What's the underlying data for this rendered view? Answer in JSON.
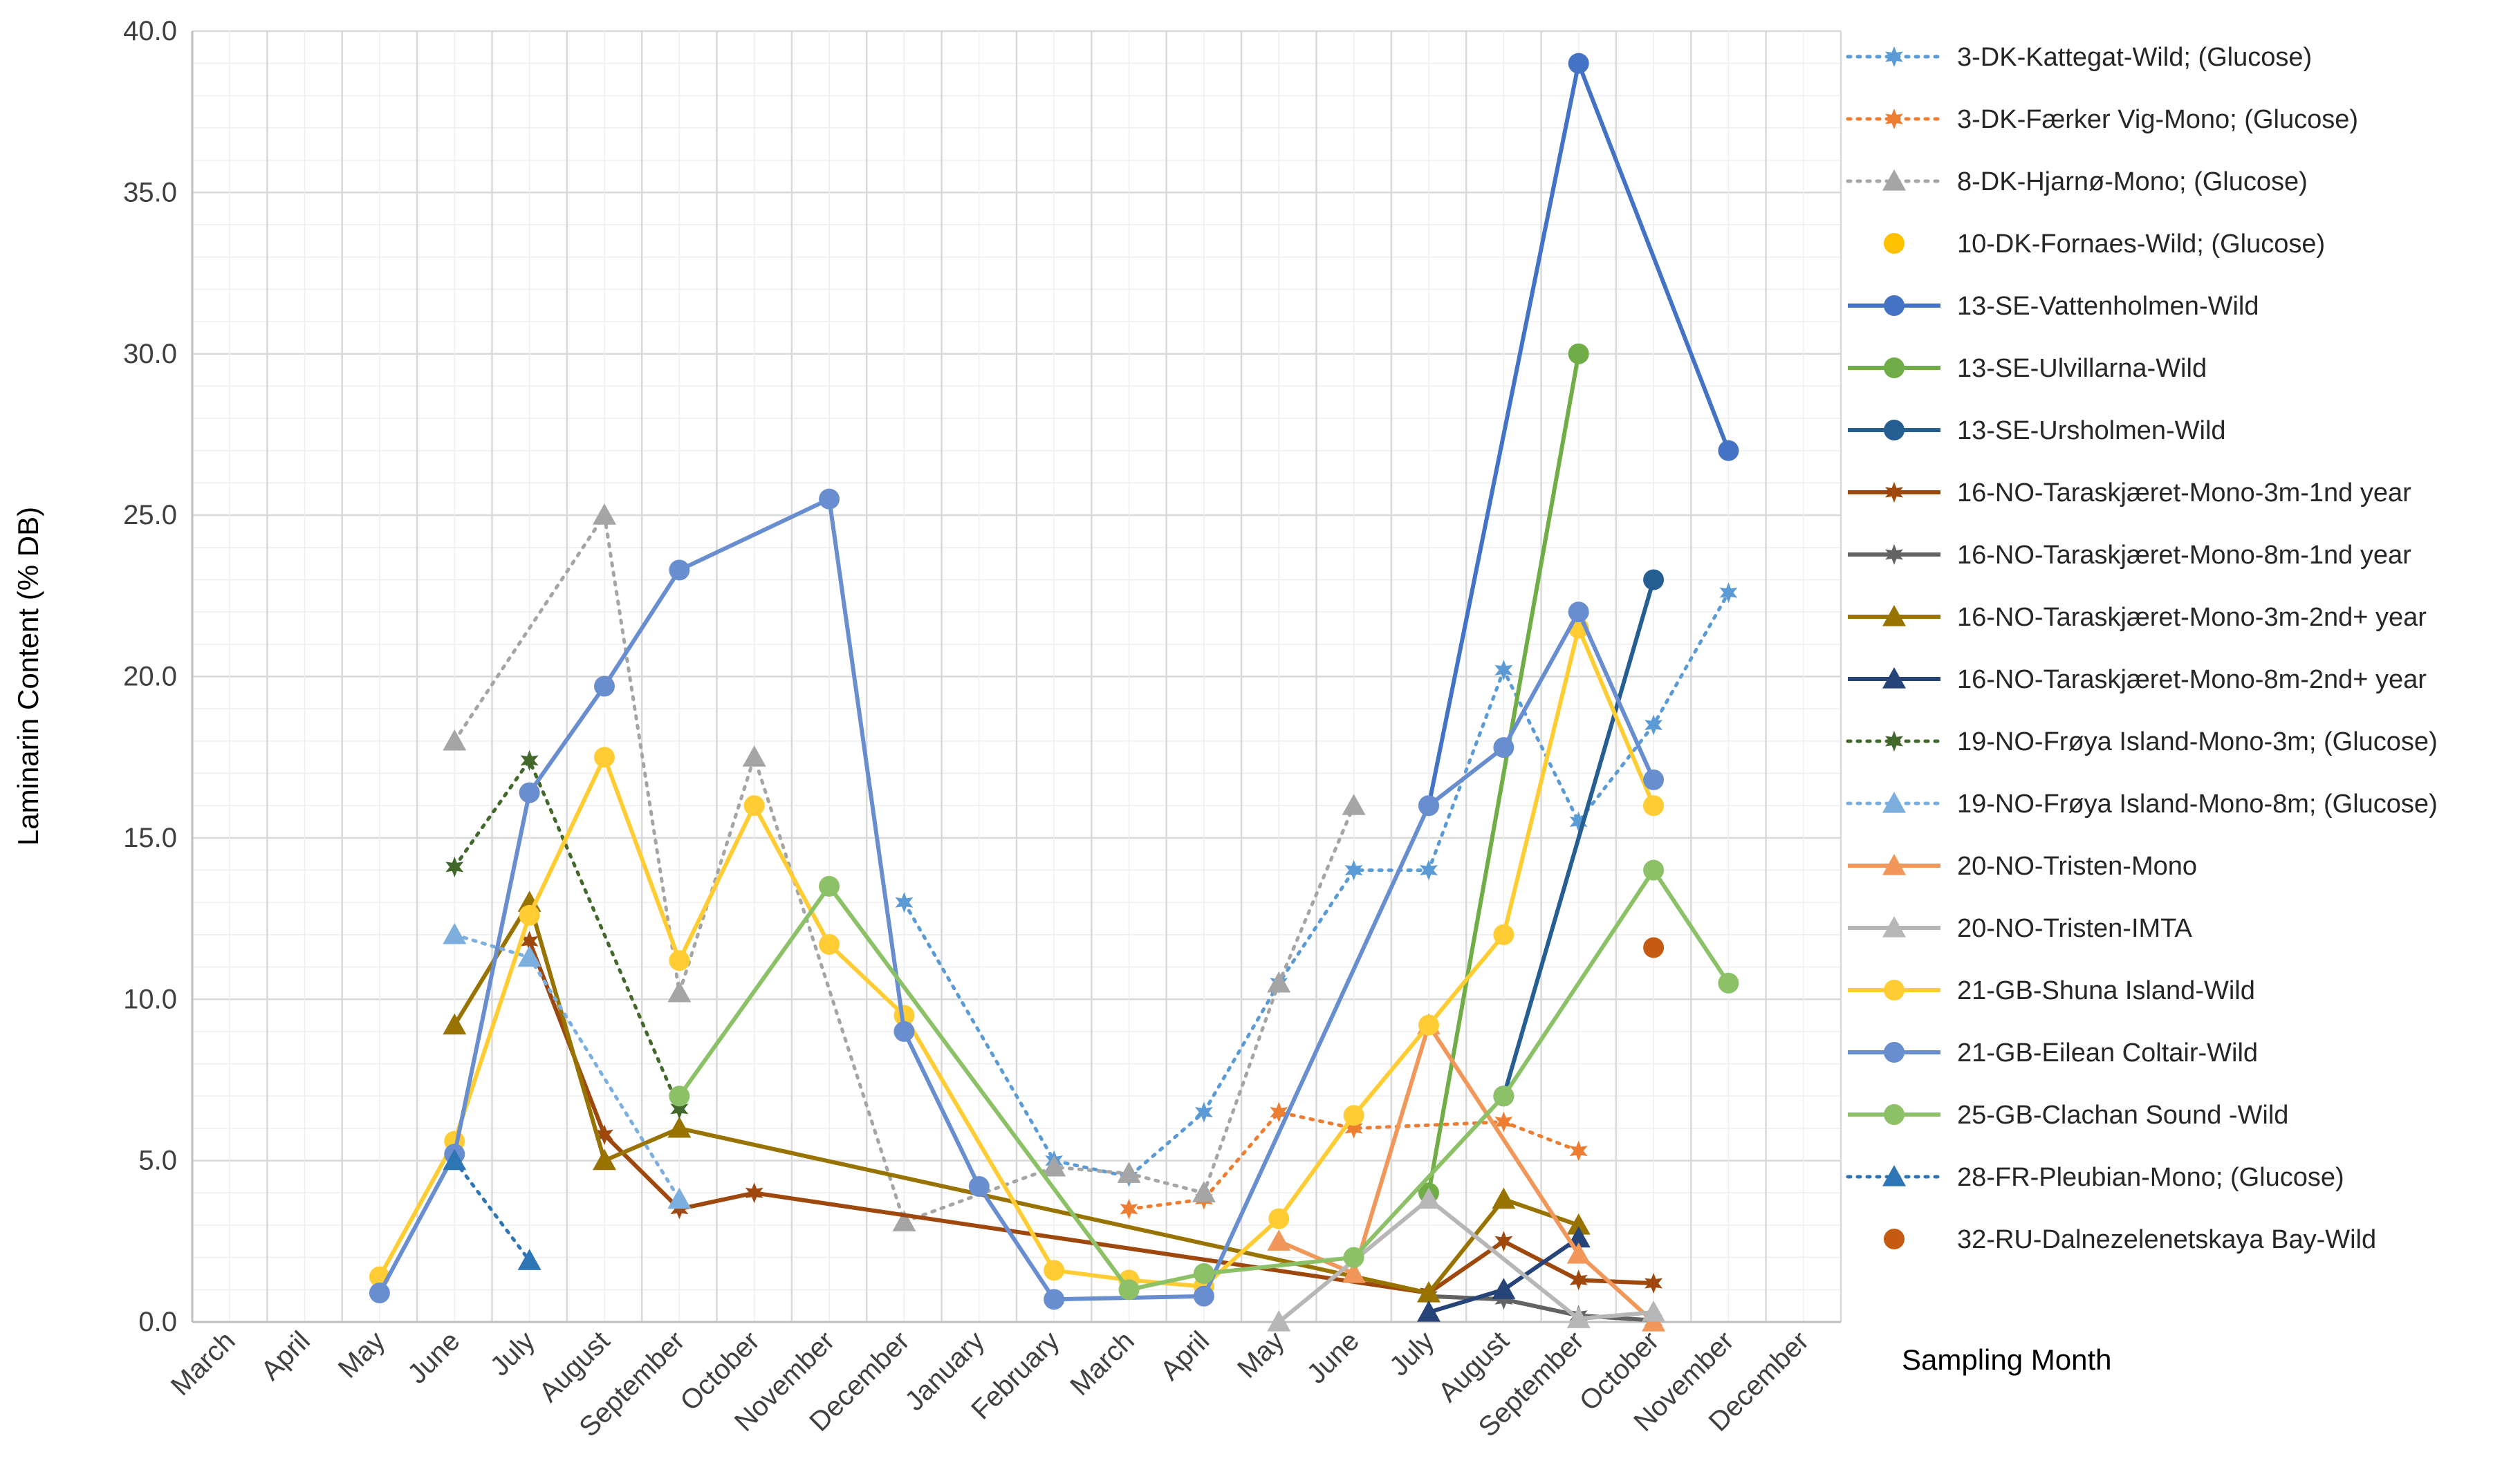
{
  "chart_data": {
    "type": "line",
    "ylabel": "Laminarin Content (% DB)",
    "xlabel": "Sampling Month",
    "ylim": [
      0,
      40
    ],
    "yticks": [
      0,
      5,
      10,
      15,
      20,
      25,
      30,
      35,
      40
    ],
    "ytick_labels": [
      "0.0",
      "5.0",
      "10.0",
      "15.0",
      "20.0",
      "25.0",
      "30.0",
      "35.0",
      "40.0"
    ],
    "grid": true,
    "legend_position": "right",
    "categories": [
      "March",
      "April",
      "May",
      "June",
      "July",
      "August",
      "September",
      "October",
      "November",
      "December",
      "January",
      "February",
      "March",
      "April",
      "May",
      "June",
      "July",
      "August",
      "September",
      "October",
      "November",
      "December"
    ],
    "series": [
      {
        "name": "3-DK-Kattegat-Wild; (Glucose)",
        "color": "#5B9BD5",
        "dash": "dot",
        "marker": "star",
        "points": [
          [
            9,
            13.0
          ],
          [
            11,
            5.0
          ],
          [
            12,
            4.5
          ],
          [
            13,
            6.5
          ],
          [
            14,
            10.5
          ],
          [
            15,
            14.0
          ],
          [
            16,
            14.0
          ],
          [
            17,
            20.2
          ],
          [
            18,
            15.5
          ],
          [
            19,
            18.5
          ],
          [
            20,
            22.6
          ]
        ]
      },
      {
        "name": "3-DK-Færker Vig-Mono; (Glucose)",
        "color": "#ED7D31",
        "dash": "dot",
        "marker": "star",
        "points": [
          [
            12,
            3.5
          ],
          [
            13,
            3.8
          ],
          [
            14,
            6.5
          ],
          [
            15,
            6.0
          ],
          [
            17,
            6.2
          ],
          [
            18,
            5.3
          ]
        ]
      },
      {
        "name": "8-DK-Hjarnø-Mono; (Glucose)",
        "color": "#A5A5A5",
        "dash": "dot",
        "marker": "triangle",
        "points": [
          [
            3,
            18.0
          ],
          [
            5,
            25.0
          ],
          [
            6,
            10.2
          ],
          [
            7,
            17.5
          ],
          [
            9,
            3.1
          ],
          [
            11,
            4.8
          ],
          [
            12,
            4.6
          ],
          [
            13,
            4.0
          ],
          [
            14,
            10.5
          ],
          [
            15,
            16.0
          ]
        ]
      },
      {
        "name": "10-DK-Fornaes-Wild; (Glucose)",
        "color": "#FFC000",
        "dash": "none",
        "marker": "circle",
        "points": [
          [
            19,
            16.0
          ]
        ]
      },
      {
        "name": "13-SE-Vattenholmen-Wild",
        "color": "#4472C4",
        "dash": "solid",
        "marker": "circle",
        "points": [
          [
            16,
            16.0
          ],
          [
            18,
            39.0
          ],
          [
            20,
            27.0
          ]
        ]
      },
      {
        "name": "13-SE-Ulvillarna-Wild",
        "color": "#70AD47",
        "dash": "solid",
        "marker": "circle",
        "points": [
          [
            16,
            4.0
          ],
          [
            18,
            30.0
          ]
        ]
      },
      {
        "name": "13-SE-Ursholmen-Wild",
        "color": "#255E91",
        "dash": "solid",
        "marker": "circle",
        "points": [
          [
            17,
            7.0
          ],
          [
            19,
            23.0
          ]
        ]
      },
      {
        "name": "16-NO-Taraskjæret-Mono-3m-1nd year",
        "color": "#9E480E",
        "dash": "solid",
        "marker": "star",
        "points": [
          [
            4,
            11.8
          ],
          [
            5,
            5.8
          ],
          [
            6,
            3.5
          ],
          [
            7,
            4.0
          ],
          [
            16,
            0.9
          ],
          [
            17,
            2.5
          ],
          [
            18,
            1.3
          ],
          [
            19,
            1.2
          ]
        ]
      },
      {
        "name": "16-NO-Taraskjæret-Mono-8m-1nd year",
        "color": "#636363",
        "dash": "solid",
        "marker": "star",
        "points": [
          [
            16,
            0.8
          ],
          [
            17,
            0.7
          ],
          [
            18,
            0.2
          ],
          [
            19,
            0.05
          ]
        ]
      },
      {
        "name": "16-NO-Taraskjæret-Mono-3m-2nd+ year",
        "color": "#997300",
        "dash": "solid",
        "marker": "triangle",
        "points": [
          [
            3,
            9.2
          ],
          [
            4,
            13.0
          ],
          [
            5,
            5.0
          ],
          [
            6,
            6.0
          ],
          [
            16,
            0.9
          ],
          [
            17,
            3.8
          ],
          [
            18,
            3.0
          ]
        ]
      },
      {
        "name": "16-NO-Taraskjæret-Mono-8m-2nd+ year",
        "color": "#264478",
        "dash": "solid",
        "marker": "triangle",
        "points": [
          [
            16,
            0.3
          ],
          [
            17,
            1.0
          ],
          [
            18,
            2.6
          ]
        ]
      },
      {
        "name": "19-NO-Frøya Island-Mono-3m; (Glucose)",
        "color": "#43682B",
        "dash": "dot",
        "marker": "star",
        "points": [
          [
            3,
            14.1
          ],
          [
            4,
            17.4
          ],
          [
            6,
            6.6
          ]
        ]
      },
      {
        "name": "19-NO-Frøya Island-Mono-8m; (Glucose)",
        "color": "#7CAFDD",
        "dash": "dot",
        "marker": "triangle",
        "points": [
          [
            3,
            12.0
          ],
          [
            4,
            11.3
          ],
          [
            6,
            3.8
          ]
        ]
      },
      {
        "name": "20-NO-Tristen-Mono",
        "color": "#F1975A",
        "dash": "solid",
        "marker": "triangle",
        "points": [
          [
            14,
            2.5
          ],
          [
            15,
            1.5
          ],
          [
            16,
            9.2
          ],
          [
            18,
            2.1
          ],
          [
            19,
            0.0
          ]
        ]
      },
      {
        "name": "20-NO-Tristen-IMTA",
        "color": "#B7B7B7",
        "dash": "solid",
        "marker": "triangle",
        "points": [
          [
            14,
            0.0
          ],
          [
            16,
            3.8
          ],
          [
            18,
            0.1
          ],
          [
            19,
            0.3
          ]
        ]
      },
      {
        "name": "21-GB-Shuna Island-Wild",
        "color": "#FFCD33",
        "dash": "solid",
        "marker": "circle",
        "points": [
          [
            2,
            1.4
          ],
          [
            3,
            5.6
          ],
          [
            4,
            12.6
          ],
          [
            5,
            17.5
          ],
          [
            6,
            11.2
          ],
          [
            7,
            16.0
          ],
          [
            8,
            11.7
          ],
          [
            9,
            9.5
          ],
          [
            11,
            1.6
          ],
          [
            12,
            1.3
          ],
          [
            13,
            1.1
          ],
          [
            14,
            3.2
          ],
          [
            15,
            6.4
          ],
          [
            16,
            9.2
          ],
          [
            17,
            12.0
          ],
          [
            18,
            21.5
          ],
          [
            19,
            16.0
          ]
        ]
      },
      {
        "name": "21-GB-Eilean Coltair-Wild",
        "color": "#698ED0",
        "dash": "solid",
        "marker": "circle",
        "points": [
          [
            2,
            0.9
          ],
          [
            3,
            5.2
          ],
          [
            4,
            16.4
          ],
          [
            5,
            19.7
          ],
          [
            6,
            23.3
          ],
          [
            8,
            25.5
          ],
          [
            9,
            9.0
          ],
          [
            10,
            4.2
          ],
          [
            11,
            0.7
          ],
          [
            13,
            0.8
          ],
          [
            16,
            16.0
          ],
          [
            17,
            17.8
          ],
          [
            18,
            22.0
          ],
          [
            19,
            16.8
          ]
        ]
      },
      {
        "name": "25-GB-Clachan Sound -Wild",
        "color": "#8CC168",
        "dash": "solid",
        "marker": "circle",
        "points": [
          [
            6,
            7.0
          ],
          [
            8,
            13.5
          ],
          [
            12,
            1.0
          ],
          [
            13,
            1.5
          ],
          [
            15,
            2.0
          ],
          [
            17,
            7.0
          ],
          [
            19,
            14.0
          ],
          [
            20,
            10.5
          ]
        ]
      },
      {
        "name": "28-FR-Pleubian-Mono; (Glucose)",
        "color": "#2E75B6",
        "dash": "dot",
        "marker": "triangle",
        "points": [
          [
            3,
            5.0
          ],
          [
            4,
            1.9
          ]
        ]
      },
      {
        "name": "32-RU-Dalnezelenetskaya Bay-Wild",
        "color": "#C55A11",
        "dash": "none",
        "marker": "circle",
        "points": [
          [
            19,
            11.6
          ]
        ]
      }
    ]
  }
}
